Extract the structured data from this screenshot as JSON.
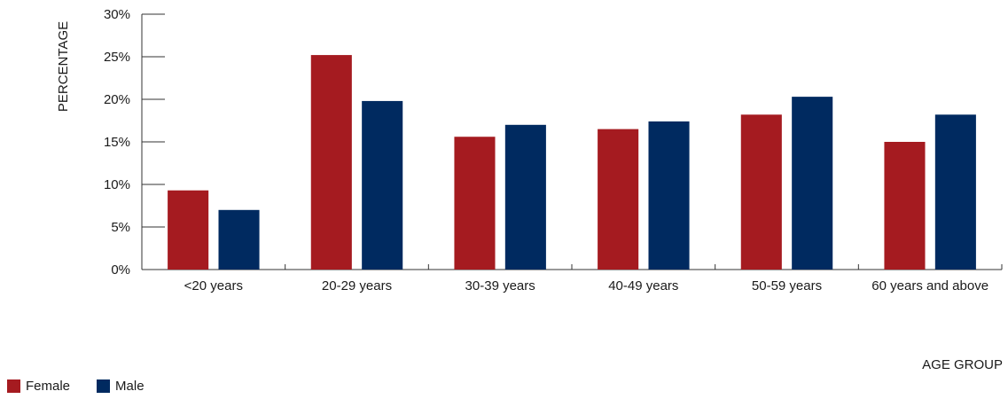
{
  "chart_data": {
    "type": "bar",
    "categories": [
      "<20 years",
      "20-29 years",
      "30-39 years",
      "40-49 years",
      "50-59 years",
      "60 years and above"
    ],
    "series": [
      {
        "name": "Female",
        "values": [
          9.3,
          25.2,
          15.6,
          16.5,
          18.2,
          15.0
        ],
        "color": "#a51b20"
      },
      {
        "name": "Male",
        "values": [
          7.0,
          19.8,
          17.0,
          17.4,
          20.3,
          18.2
        ],
        "color": "#002a60"
      }
    ],
    "xlabel": "AGE GROUP",
    "ylabel": "PERCENTAGE",
    "ylim": [
      0,
      30
    ],
    "yticks": [
      "0%",
      "5%",
      "10%",
      "15%",
      "20%",
      "25%",
      "30%"
    ],
    "grid": false,
    "legend": "bottom-left"
  }
}
